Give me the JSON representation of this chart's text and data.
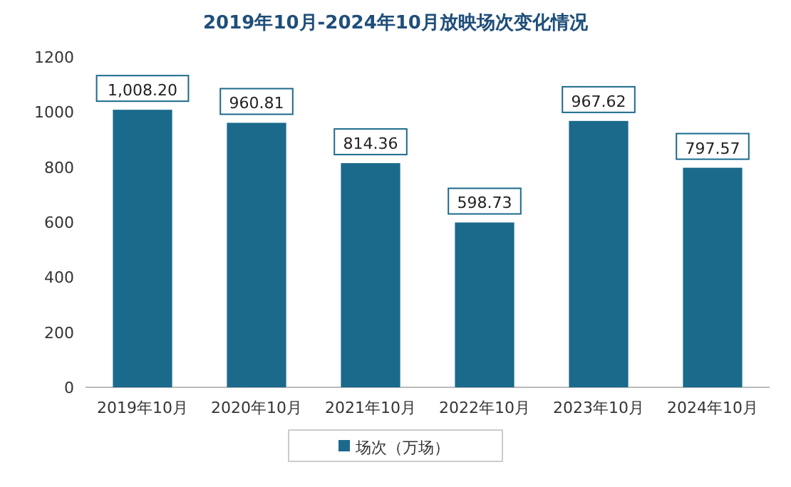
{
  "chart_data": {
    "type": "bar",
    "title": "2019年10月-2024年10月放映场次变化情况",
    "categories": [
      "2019年10月",
      "2020年10月",
      "2021年10月",
      "2022年10月",
      "2023年10月",
      "2024年10月"
    ],
    "series": [
      {
        "name": "场次（万场）",
        "color": "#1b6a8c",
        "values": [
          1008.2,
          960.81,
          814.36,
          598.73,
          967.62,
          797.57
        ],
        "value_labels": [
          "1,008.20",
          "960.81",
          "814.36",
          "598.73",
          "967.62",
          "797.57"
        ]
      }
    ],
    "ylim": [
      0,
      1200
    ],
    "yticks": [
      0,
      200,
      400,
      600,
      800,
      1000,
      1200
    ],
    "legend": "bottom"
  }
}
